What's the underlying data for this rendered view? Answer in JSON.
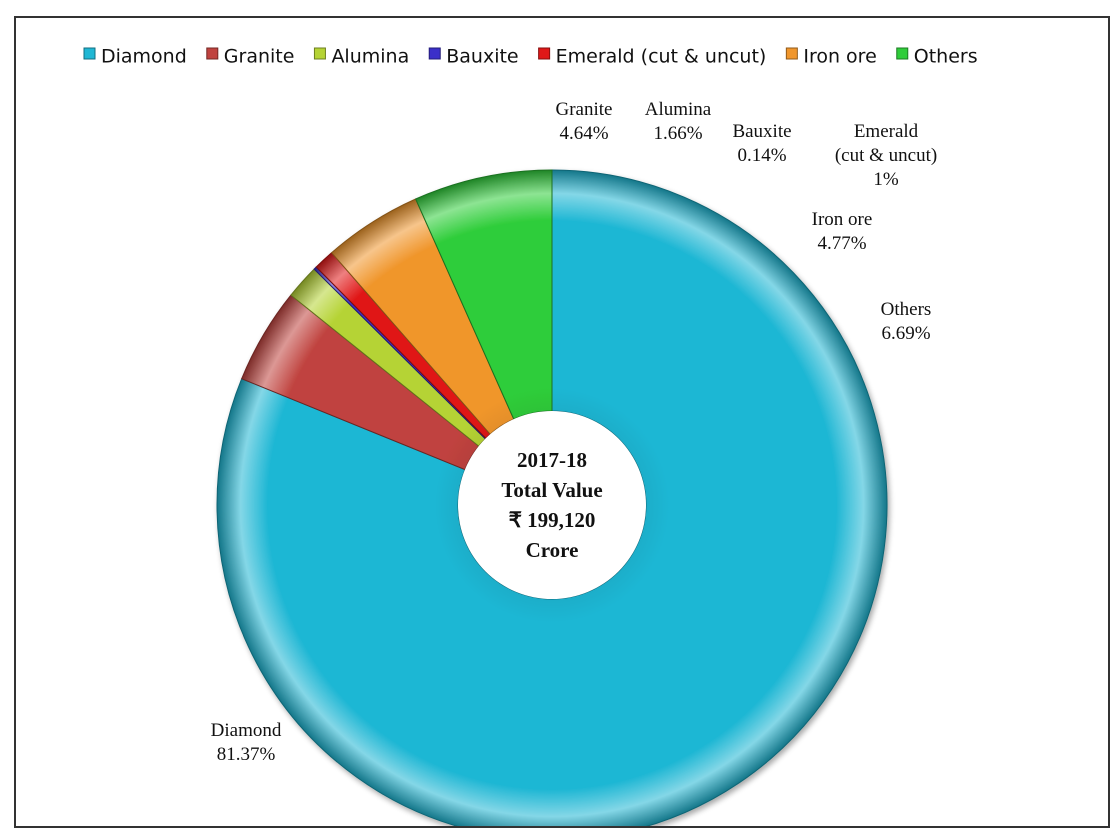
{
  "chart_data": {
    "type": "pie",
    "style": "3d-bevel doughnut",
    "legend_position": "top",
    "center_label": [
      "2017-18",
      "Total Value",
      "₹ 199,120",
      "Crore"
    ],
    "categories": [
      "Diamond",
      "Granite",
      "Alumina",
      "Bauxite",
      "Emerald (cut & uncut)",
      "Iron ore",
      "Others"
    ],
    "values": [
      81.37,
      4.64,
      1.66,
      0.14,
      1,
      4.77,
      6.69
    ],
    "units": "%",
    "series": [
      {
        "name": "Diamond",
        "value": 81.37,
        "label_lines": [
          "Diamond",
          "81.37%"
        ],
        "color": "#1fb7d4"
      },
      {
        "name": "Granite",
        "value": 4.64,
        "label_lines": [
          "Granite",
          "4.64%"
        ],
        "color": "#c0433f"
      },
      {
        "name": "Alumina",
        "value": 1.66,
        "label_lines": [
          "Alumina",
          "1.66%"
        ],
        "color": "#b5d334"
      },
      {
        "name": "Bauxite",
        "value": 0.14,
        "label_lines": [
          "Bauxite",
          "0.14%"
        ],
        "color": "#3b2fc9"
      },
      {
        "name": "Emerald (cut & uncut)",
        "value": 1,
        "label_lines": [
          "Emerald",
          "(cut & uncut)",
          "1%"
        ],
        "color": "#e01818"
      },
      {
        "name": "Iron ore",
        "value": 4.77,
        "label_lines": [
          "Iron ore",
          "4.77%"
        ],
        "color": "#f0962c"
      },
      {
        "name": "Others",
        "value": 6.69,
        "label_lines": [
          "Others",
          "6.69%"
        ],
        "color": "#2fcd3a"
      }
    ]
  }
}
